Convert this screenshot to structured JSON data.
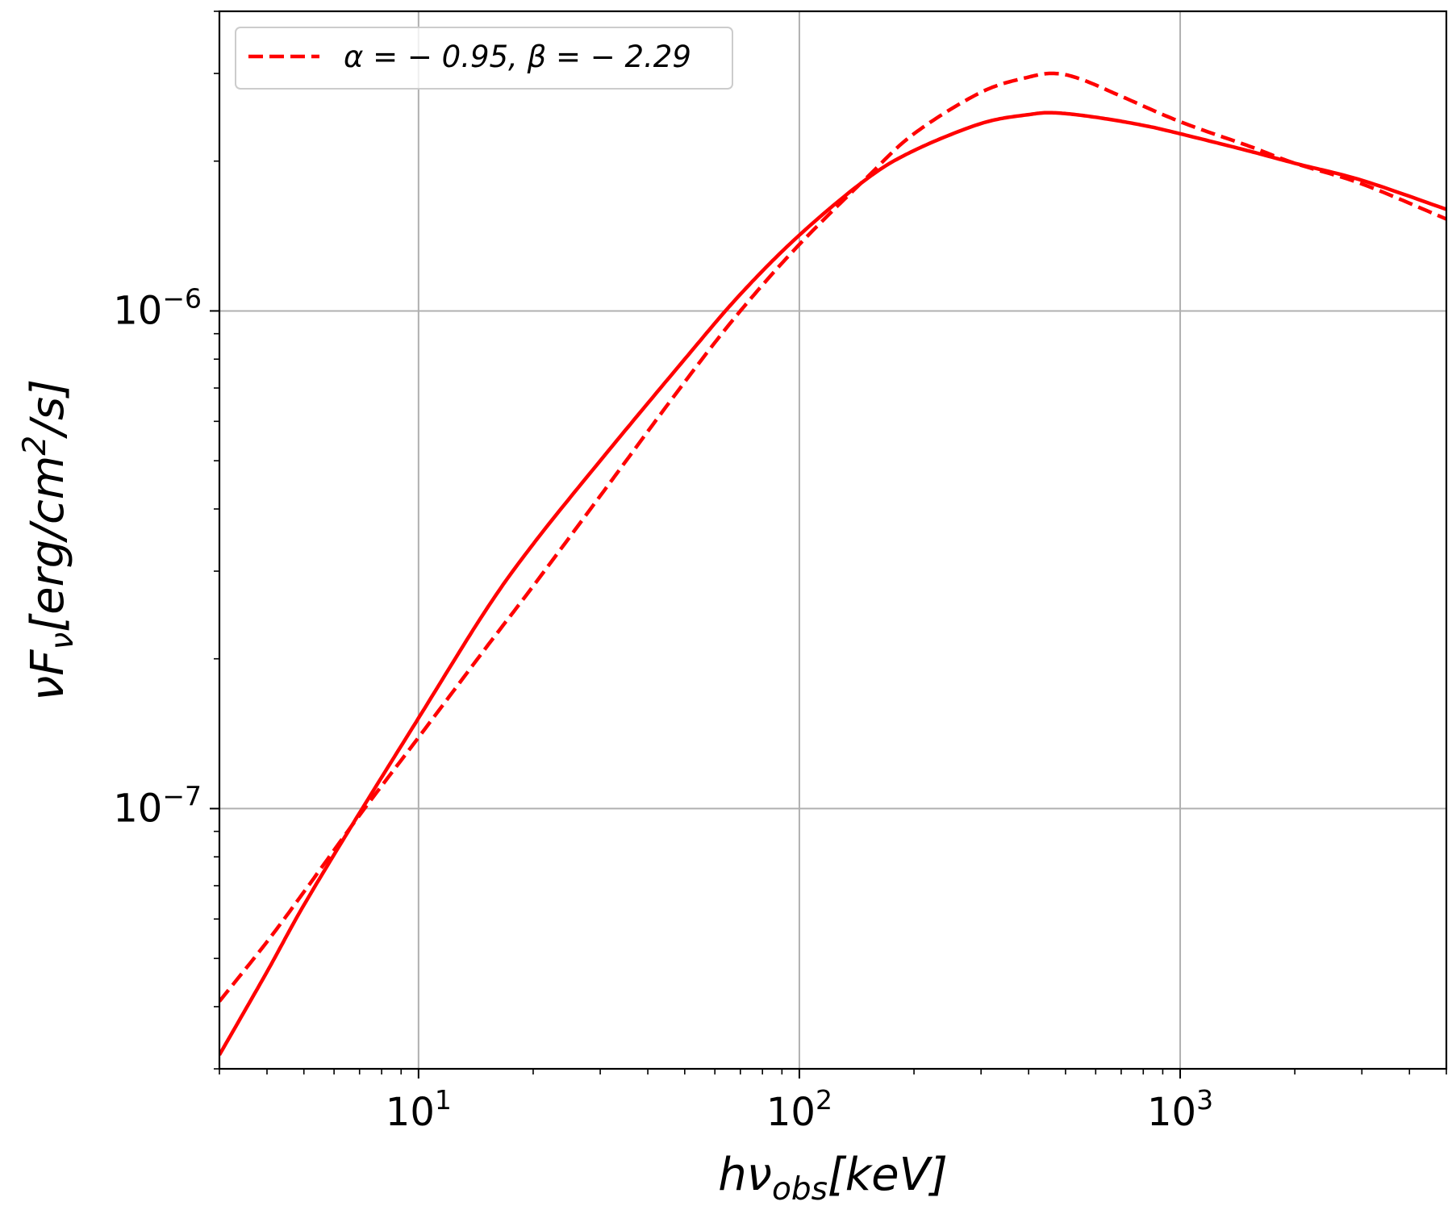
{
  "chart_data": {
    "type": "line",
    "xscale": "log",
    "yscale": "log",
    "xlim": [
      3.0,
      5000
    ],
    "ylim": [
      3e-08,
      4e-06
    ],
    "grid": true,
    "xlabel": {
      "prefix": "hν",
      "sub": "obs",
      "suffix": "[keV]"
    },
    "ylabel": {
      "prefix": "νF",
      "sub": "ν",
      "mid": "[erg/cm",
      "sup": "2",
      "suffix": "/s]"
    },
    "x_ticks": [
      {
        "value": 10,
        "base": "10",
        "exp": "1"
      },
      {
        "value": 100,
        "base": "10",
        "exp": "2"
      },
      {
        "value": 1000,
        "base": "10",
        "exp": "3"
      }
    ],
    "y_ticks": [
      {
        "value": 1e-07,
        "base": "10",
        "exp": "−7"
      },
      {
        "value": 1e-06,
        "base": "10",
        "exp": "−6"
      }
    ],
    "legend": {
      "position": "upper left",
      "entries": [
        {
          "label": "α = − 0.95, β = − 2.29",
          "series": "band-fit"
        }
      ]
    },
    "series": [
      {
        "id": "model",
        "color": "#ff0000",
        "linestyle": "solid",
        "x": [
          3,
          4,
          5,
          7,
          10,
          15,
          20,
          30,
          50,
          70,
          100,
          150,
          200,
          300,
          400,
          470,
          600,
          800,
          1000,
          1500,
          2000,
          3000,
          5000
        ],
        "y": [
          3.2e-08,
          4.7e-08,
          6.4e-08,
          9.8e-08,
          1.52e-07,
          2.5e-07,
          3.4e-07,
          5e-07,
          8e-07,
          1.08e-06,
          1.42e-06,
          1.84e-06,
          2.1e-06,
          2.38e-06,
          2.48e-06,
          2.5e-06,
          2.45e-06,
          2.36e-06,
          2.27e-06,
          2.1e-06,
          1.98e-06,
          1.83e-06,
          1.6e-06
        ]
      },
      {
        "id": "band-fit",
        "color": "#ff0000",
        "linestyle": "dashed",
        "x": [
          3,
          4,
          5,
          7,
          10,
          15,
          20,
          30,
          50,
          70,
          100,
          150,
          200,
          300,
          400,
          470,
          550,
          700,
          1000,
          1500,
          2000,
          3000,
          5000
        ],
        "y": [
          4.1e-08,
          5.4e-08,
          6.8e-08,
          9.7e-08,
          1.39e-07,
          2.1e-07,
          2.8e-07,
          4.25e-07,
          7.2e-07,
          1e-06,
          1.36e-06,
          1.85e-06,
          2.27e-06,
          2.75e-06,
          2.95e-06,
          3e-06,
          2.92e-06,
          2.7e-06,
          2.4e-06,
          2.15e-06,
          1.98e-06,
          1.8e-06,
          1.53e-06
        ]
      }
    ]
  }
}
